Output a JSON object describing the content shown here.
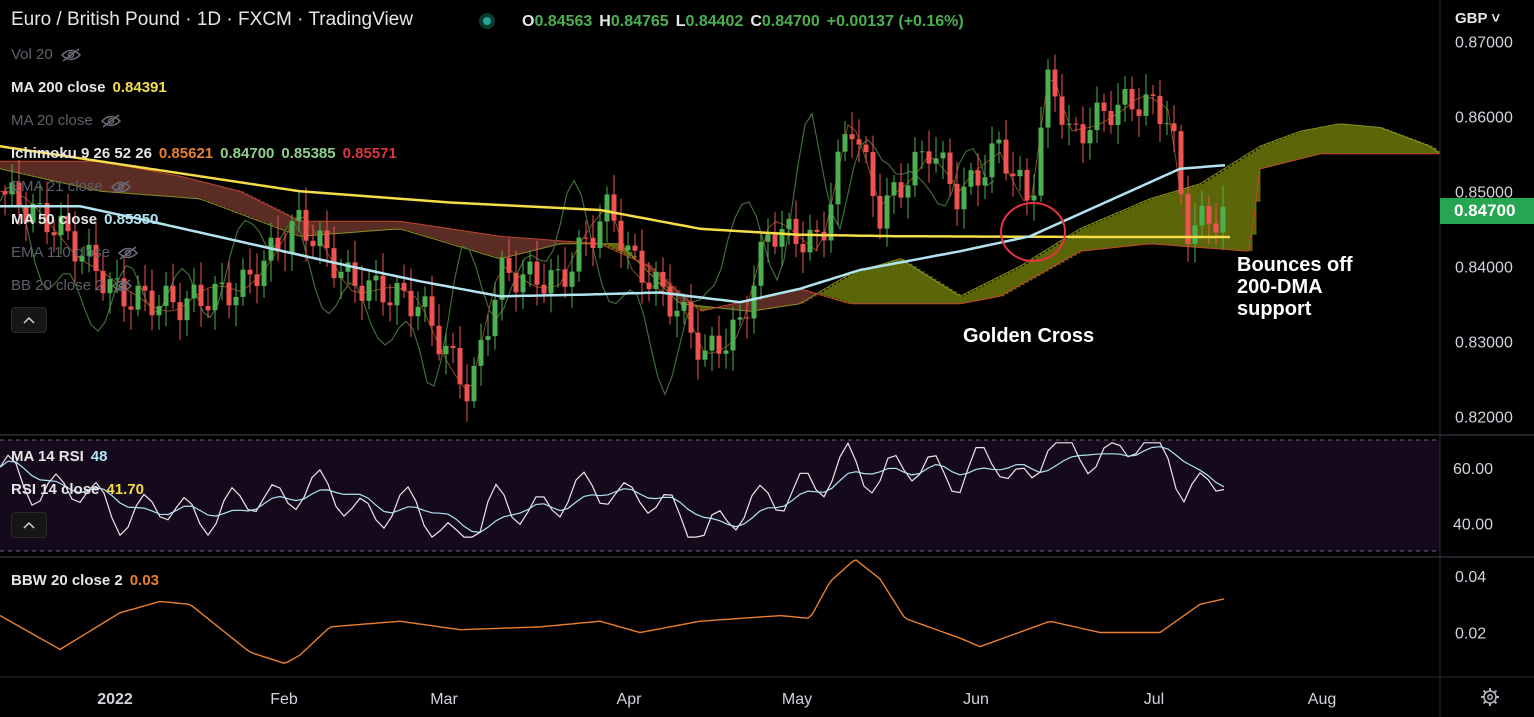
{
  "header": {
    "title": "Euro / British Pound · 1D · FXCM · TradingView",
    "ohlc": [
      {
        "k": "O",
        "v": "0.84563"
      },
      {
        "k": "H",
        "v": "0.84765"
      },
      {
        "k": "L",
        "v": "0.84402"
      },
      {
        "k": "C",
        "v": "0.84700"
      },
      {
        "k": "",
        "v": "+0.00137 (+0.16%)"
      }
    ],
    "status_color": "#26a69a"
  },
  "currency": "GBP",
  "last_price_tag": "0.84700",
  "legends": {
    "vol": {
      "name": "Vol 20"
    },
    "ma200": {
      "name": "MA 200 close",
      "value": "0.84391",
      "color": "#f5dd47"
    },
    "ma20": {
      "name": "MA 20 close"
    },
    "ichimoku": {
      "name": "Ichimoku 9 26 52 26",
      "values": [
        {
          "v": "0.85621",
          "color": "#e8802f"
        },
        {
          "v": "0.84700",
          "color": "#8fd08c"
        },
        {
          "v": "0.85385",
          "color": "#8fd08c"
        },
        {
          "v": "0.85571",
          "color": "#d9383a"
        }
      ]
    },
    "ema21": {
      "name": "EMA 21 close"
    },
    "ma50": {
      "name": "MA 50 close",
      "value": "0.85350",
      "color": "#b2e4f0"
    },
    "ema110": {
      "name": "EMA 110 close"
    },
    "bb": {
      "name": "BB 20 close 2"
    },
    "ma_rsi": {
      "name": "MA 14 RSI",
      "value": "48",
      "color": "#b2e4f0"
    },
    "rsi": {
      "name": "RSI 14 close",
      "value": "41.70",
      "color": "#f5dd47"
    },
    "bbw": {
      "name": "BBW 20 close 2",
      "value": "0.03",
      "color": "#e8802f"
    }
  },
  "price_axis": [
    "0.87000",
    "0.86000",
    "0.85000",
    "0.84000",
    "0.83000",
    "0.82000"
  ],
  "rsi_axis": [
    "60.00",
    "40.00"
  ],
  "bbw_axis": [
    "0.04",
    "0.02"
  ],
  "time_axis": [
    "2022",
    "Feb",
    "Mar",
    "Apr",
    "May",
    "Jun",
    "Jul",
    "Aug"
  ],
  "annotations": {
    "golden_cross": "Golden Cross",
    "bounce": [
      "Bounces off",
      "200-DMA",
      "support"
    ]
  },
  "colors": {
    "up": "#4caf50",
    "down": "#ef5350",
    "ma200": "#f5dd47",
    "ma50": "#b2e4f0",
    "cloud_bull": "#5f6a09",
    "cloud_bear": "#5e2e26",
    "rsi": "#efe4ea",
    "bbw": "#e8802f",
    "rsi_bg": "#140a1c",
    "marker": "#e6323c"
  },
  "chart_data": {
    "type": "candlestick",
    "price_range": [
      0.8175,
      0.8715
    ],
    "x": [
      "2022-01-03",
      "2022-02-01",
      "2022-03-01",
      "2022-04-01",
      "2022-05-02",
      "2022-06-01",
      "2022-07-01",
      "2022-08-01"
    ],
    "candles_note_last": {
      "open": 0.84563,
      "high": 0.84765,
      "low": 0.84402,
      "close": 0.847
    },
    "ma200": [
      0.856,
      0.852,
      0.849,
      0.847,
      0.845,
      0.844,
      0.844,
      0.844,
      0.844
    ],
    "ma50": [
      0.848,
      0.847,
      0.843,
      0.84,
      0.836,
      0.836,
      0.8355,
      0.839,
      0.844,
      0.849,
      0.853,
      0.8535
    ],
    "rsi": {
      "range": [
        30,
        70
      ],
      "ma14_last": 48,
      "rsi14_last": 41.7
    },
    "bbw": {
      "range": [
        0.006,
        0.045
      ],
      "last": 0.03
    }
  }
}
